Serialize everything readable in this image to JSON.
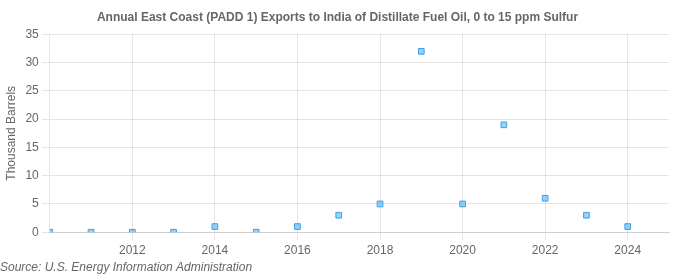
{
  "chart_data": {
    "type": "scatter",
    "title": "Annual East Coast (PADD 1) Exports to India of Distillate Fuel Oil, 0 to 15 ppm Sulfur",
    "ylabel": "Thousand Barrels",
    "annotations": [
      "Source: U.S. Energy Information Administration"
    ],
    "x": [
      2010,
      2011,
      2012,
      2013,
      2014,
      2015,
      2016,
      2017,
      2018,
      2019,
      2020,
      2021,
      2022,
      2023,
      2024
    ],
    "values": [
      0,
      0,
      0,
      0,
      1,
      0,
      1,
      3,
      5,
      32,
      5,
      19,
      6,
      3,
      1
    ],
    "marker": "square",
    "xlim": [
      2010.0,
      2025.0
    ],
    "xticks": [
      2012,
      2014,
      2016,
      2018,
      2020,
      2022,
      2024
    ],
    "ylim": [
      0,
      35
    ],
    "yticks": [
      0,
      5,
      10,
      15,
      20,
      25,
      30,
      35
    ],
    "grid": true
  }
}
